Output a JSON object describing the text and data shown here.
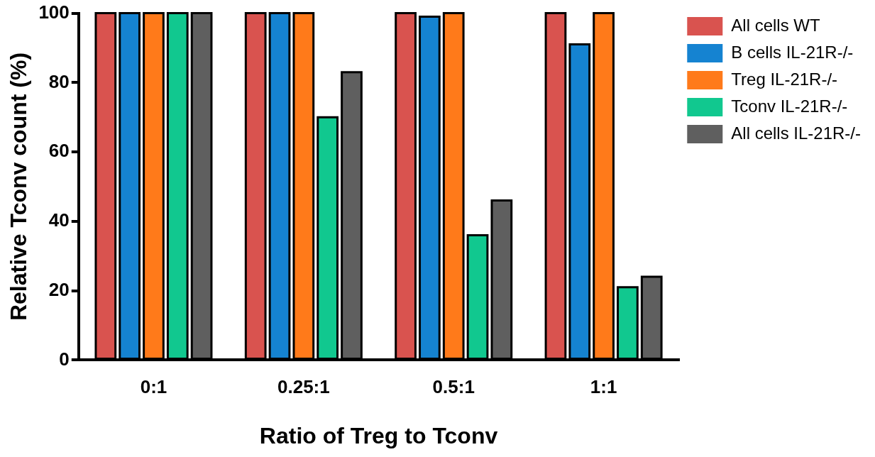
{
  "chart_data": {
    "type": "bar",
    "xlabel": "Ratio of Treg to Tconv",
    "ylabel": "Relative Tconv count (%)",
    "categories": [
      "0:1",
      "0.25:1",
      "0.5:1",
      "1:1"
    ],
    "series": [
      {
        "name": "All cells WT",
        "color": "#d9534f",
        "values": [
          100,
          100,
          100,
          100
        ]
      },
      {
        "name": "B cells IL-21R-/-",
        "color": "#1583d1",
        "values": [
          100,
          100,
          99,
          91
        ]
      },
      {
        "name": "Treg IL-21R-/-",
        "color": "#ff7a1a",
        "values": [
          100,
          100,
          100,
          100
        ]
      },
      {
        "name": "Tconv IL-21R-/-",
        "color": "#11c88f",
        "values": [
          100,
          70,
          36,
          21
        ]
      },
      {
        "name": "All cells IL-21R-/-",
        "color": "#5f5f5f",
        "values": [
          100,
          83,
          46,
          24
        ]
      }
    ],
    "ylim": [
      0,
      100
    ],
    "yticks": [
      0,
      20,
      40,
      60,
      80,
      100
    ],
    "grid": false,
    "legend": "top right"
  }
}
